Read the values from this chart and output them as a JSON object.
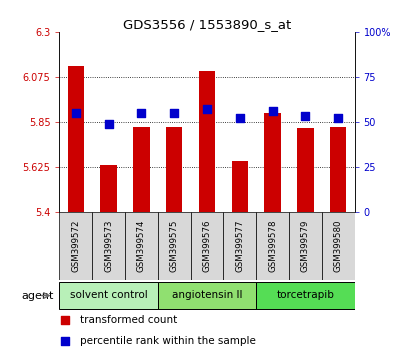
{
  "title": "GDS3556 / 1553890_s_at",
  "samples": [
    "GSM399572",
    "GSM399573",
    "GSM399574",
    "GSM399575",
    "GSM399576",
    "GSM399577",
    "GSM399578",
    "GSM399579",
    "GSM399580"
  ],
  "red_values": [
    6.13,
    5.635,
    5.825,
    5.825,
    6.105,
    5.655,
    5.895,
    5.82,
    5.825
  ],
  "blue_values": [
    55,
    49,
    55,
    55,
    57,
    52,
    56,
    53,
    52
  ],
  "ylim_left": [
    5.4,
    6.3
  ],
  "ylim_right": [
    0,
    100
  ],
  "yticks_left": [
    5.4,
    5.625,
    5.85,
    6.075,
    6.3
  ],
  "yticks_right": [
    0,
    25,
    50,
    75,
    100
  ],
  "ytick_labels_left": [
    "5.4",
    "5.625",
    "5.85",
    "6.075",
    "6.3"
  ],
  "ytick_labels_right": [
    "0",
    "25",
    "50",
    "75",
    "100%"
  ],
  "groups": [
    {
      "label": "solvent control",
      "indices": [
        0,
        1,
        2
      ],
      "color": "#b8f0b8"
    },
    {
      "label": "angiotensin II",
      "indices": [
        3,
        4,
        5
      ],
      "color": "#90e070"
    },
    {
      "label": "torcetrapib",
      "indices": [
        6,
        7,
        8
      ],
      "color": "#55dd55"
    }
  ],
  "bar_color": "#cc0000",
  "dot_color": "#0000cc",
  "bar_width": 0.5,
  "dot_size": 30,
  "background_color": "#ffffff",
  "tick_color_left": "#cc0000",
  "tick_color_right": "#0000cc",
  "legend_items": [
    {
      "color": "#cc0000",
      "label": "transformed count"
    },
    {
      "color": "#0000cc",
      "label": "percentile rank within the sample"
    }
  ]
}
